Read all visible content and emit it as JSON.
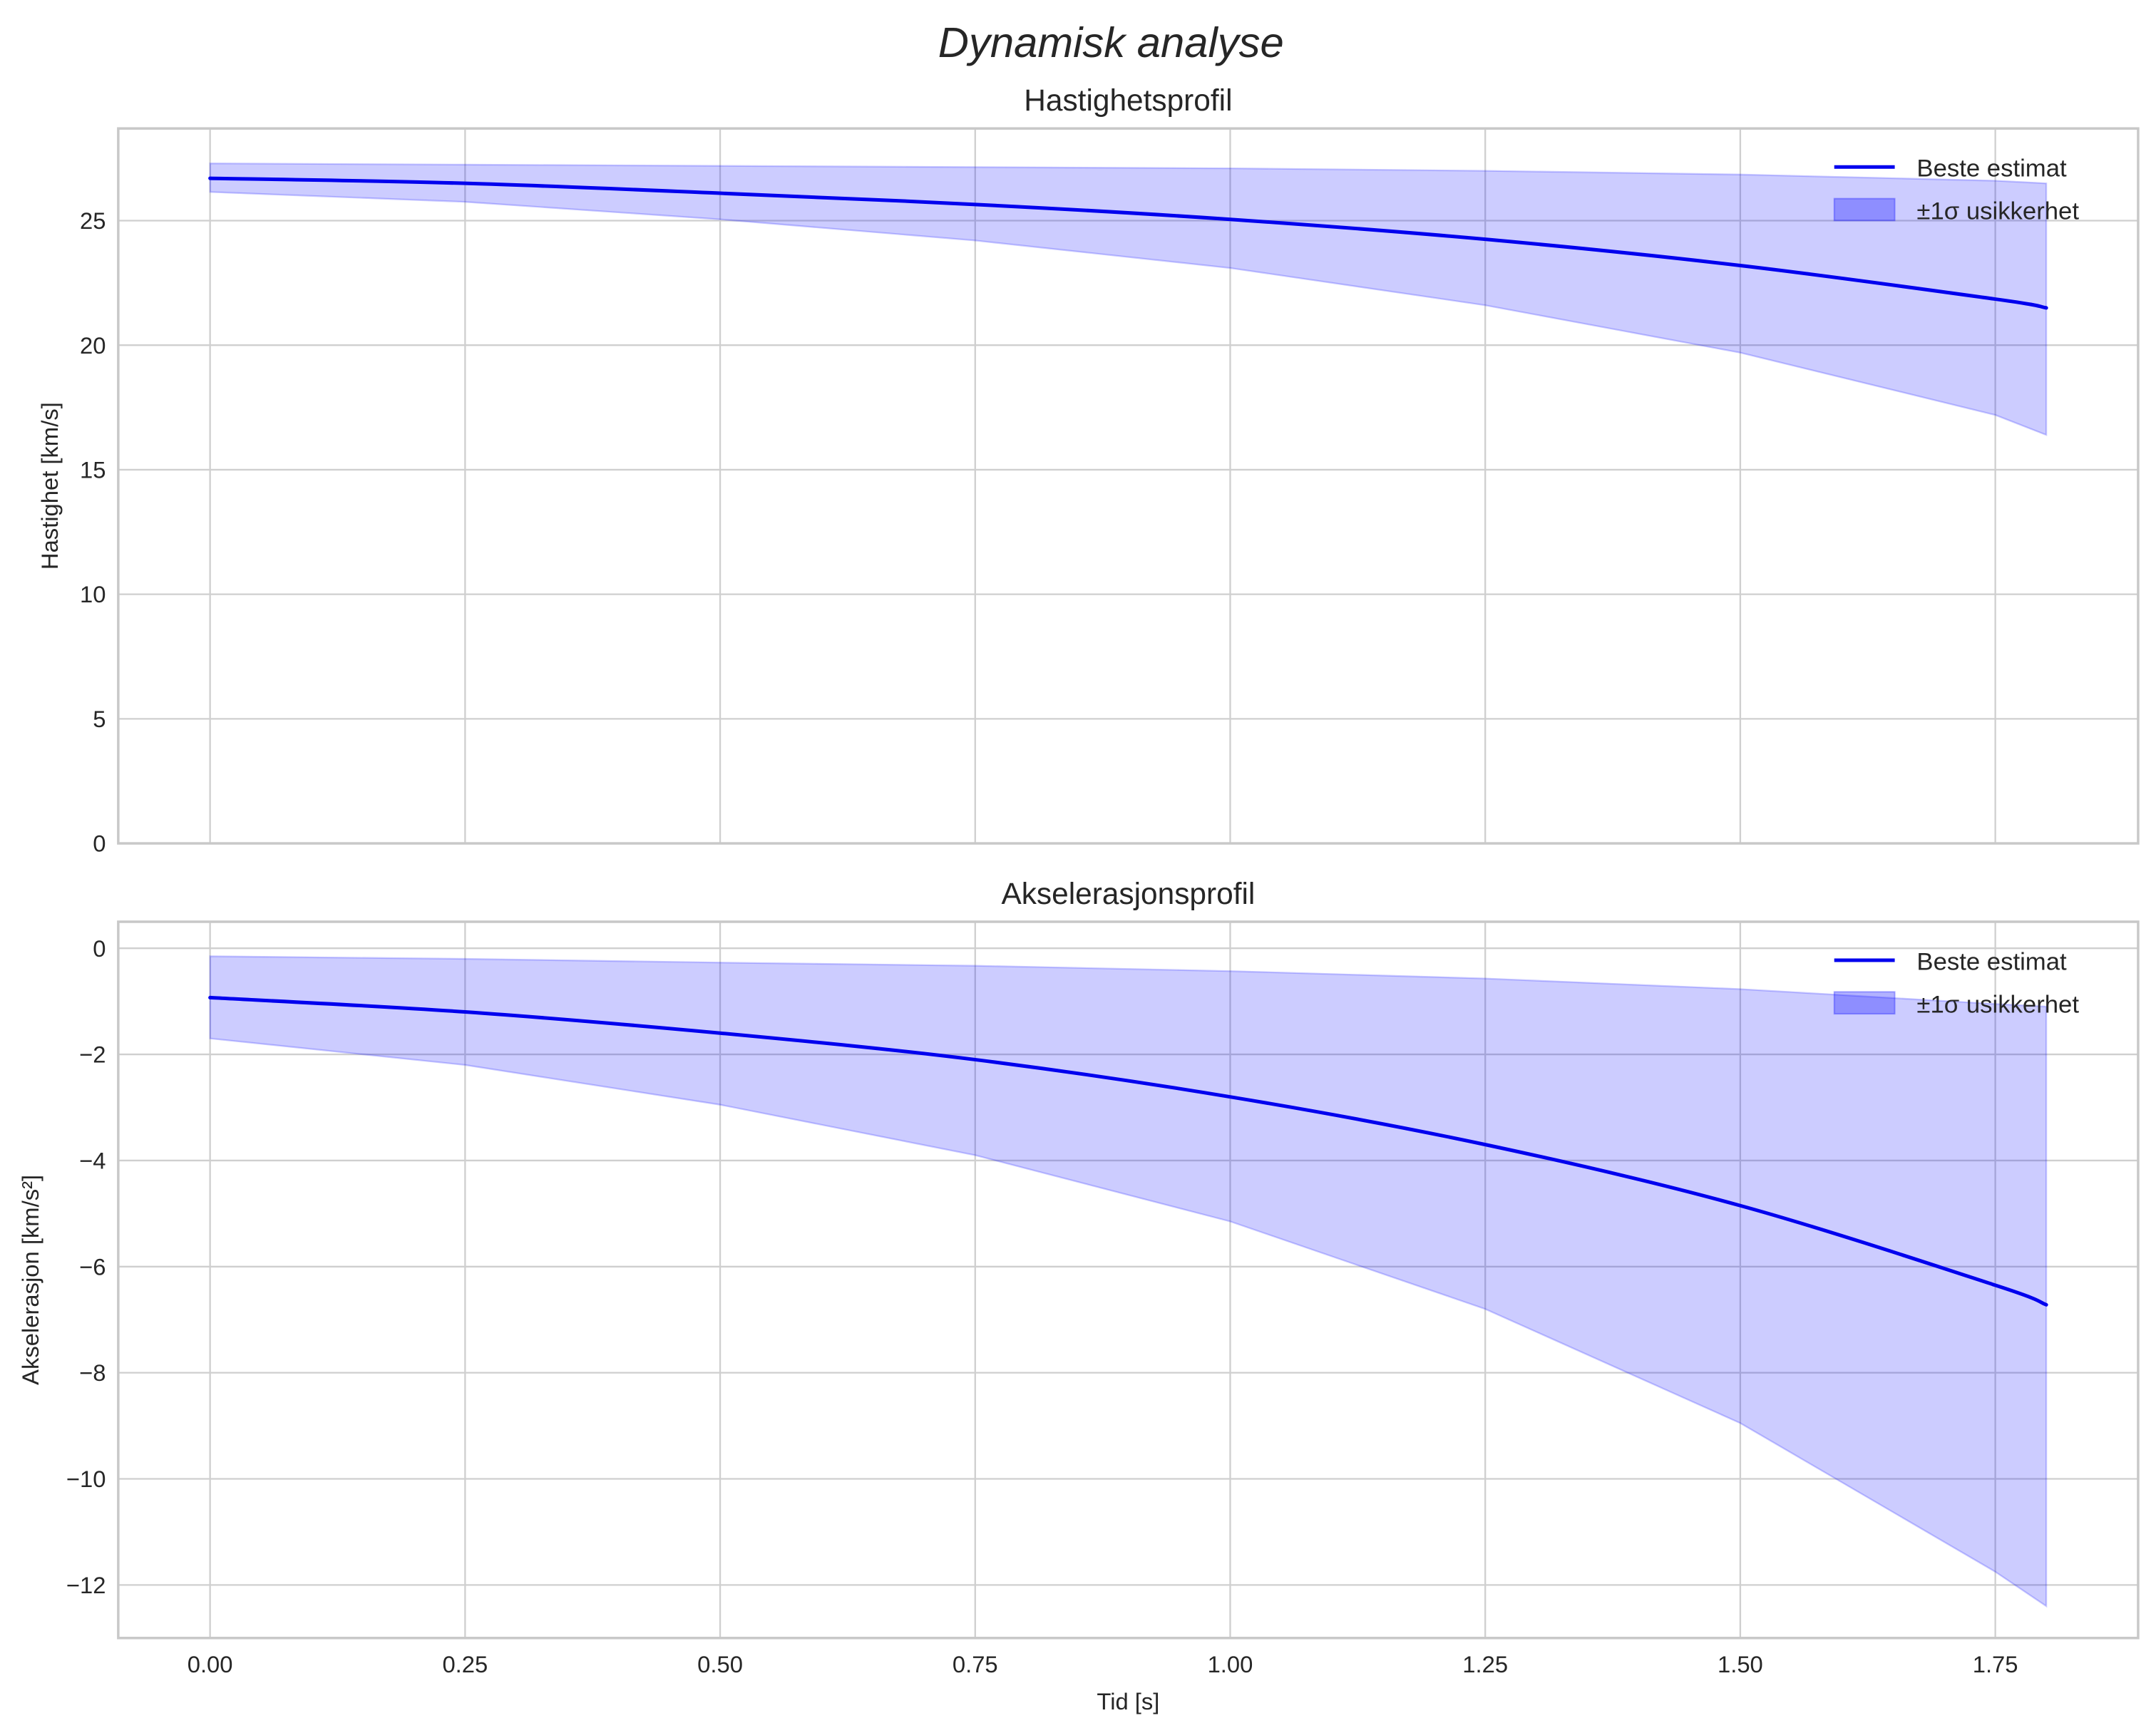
{
  "figure": {
    "title": "Dynamisk analyse"
  },
  "chart_data": [
    {
      "type": "line",
      "title": "Hastighetsprofil",
      "xlabel": "",
      "ylabel": "Hastighet [km/s]",
      "xlim": [
        -0.09,
        1.89
      ],
      "ylim": [
        0,
        28.7
      ],
      "x_ticks": [
        "0.00",
        "0.25",
        "0.50",
        "0.75",
        "1.00",
        "1.25",
        "1.50",
        "1.75"
      ],
      "x_tick_values": [
        0,
        0.25,
        0.5,
        0.75,
        1.0,
        1.25,
        1.5,
        1.75
      ],
      "y_ticks": [
        "0",
        "5",
        "10",
        "15",
        "20",
        "25"
      ],
      "y_tick_values": [
        0,
        5,
        10,
        15,
        20,
        25
      ],
      "grid": true,
      "legend_position": "upper right",
      "legend": [
        "Beste estimat",
        "±1σ usikkerhet"
      ],
      "x": [
        0,
        0.25,
        0.5,
        0.75,
        1.0,
        1.25,
        1.5,
        1.75,
        1.8
      ],
      "series": [
        {
          "name": "Beste estimat",
          "values": [
            26.7,
            26.5,
            26.1,
            25.65,
            25.05,
            24.25,
            23.2,
            21.85,
            21.5
          ],
          "color": "#0000ee"
        },
        {
          "name": "±1σ upper",
          "values": [
            27.3,
            27.25,
            27.2,
            27.15,
            27.1,
            27.0,
            26.85,
            26.6,
            26.5
          ],
          "color": "#8080ff"
        },
        {
          "name": "±1σ lower",
          "values": [
            26.15,
            25.75,
            25.05,
            24.2,
            23.1,
            21.6,
            19.7,
            17.2,
            16.4
          ],
          "color": "#8080ff"
        }
      ]
    },
    {
      "type": "line",
      "title": "Akselerasjonsprofil",
      "xlabel": "Tid [s]",
      "ylabel": "Akselerasjon [km/s²]",
      "xlim": [
        -0.09,
        1.89
      ],
      "ylim": [
        -13.0,
        0.5
      ],
      "x_ticks": [
        "0.00",
        "0.25",
        "0.50",
        "0.75",
        "1.00",
        "1.25",
        "1.50",
        "1.75"
      ],
      "x_tick_values": [
        0,
        0.25,
        0.5,
        0.75,
        1.0,
        1.25,
        1.5,
        1.75
      ],
      "y_ticks": [
        "0",
        "−2",
        "−4",
        "−6",
        "−8",
        "−10",
        "−12"
      ],
      "y_tick_values": [
        0,
        -2,
        -4,
        -6,
        -8,
        -10,
        -12
      ],
      "grid": true,
      "legend_position": "upper right",
      "legend": [
        "Beste estimat",
        "±1σ usikkerhet"
      ],
      "x": [
        0,
        0.25,
        0.5,
        0.75,
        1.0,
        1.25,
        1.5,
        1.75,
        1.8
      ],
      "series": [
        {
          "name": "Beste estimat",
          "values": [
            -0.93,
            -1.2,
            -1.6,
            -2.1,
            -2.8,
            -3.7,
            -4.85,
            -6.35,
            -6.72
          ],
          "color": "#0000ee"
        },
        {
          "name": "±1σ upper",
          "values": [
            -0.15,
            -0.2,
            -0.27,
            -0.33,
            -0.43,
            -0.57,
            -0.77,
            -1.05,
            -1.1
          ],
          "color": "#8080ff"
        },
        {
          "name": "±1σ lower",
          "values": [
            -1.7,
            -2.2,
            -2.95,
            -3.9,
            -5.15,
            -6.8,
            -8.95,
            -11.75,
            -12.4
          ],
          "color": "#8080ff"
        }
      ]
    }
  ],
  "colors": {
    "line": "#0000ee",
    "band_fill": "#ccccff",
    "band_edge": "#a0a0f8",
    "grid": "#cfcfcf",
    "spine": "#c8c8c8",
    "text": "#262626"
  }
}
